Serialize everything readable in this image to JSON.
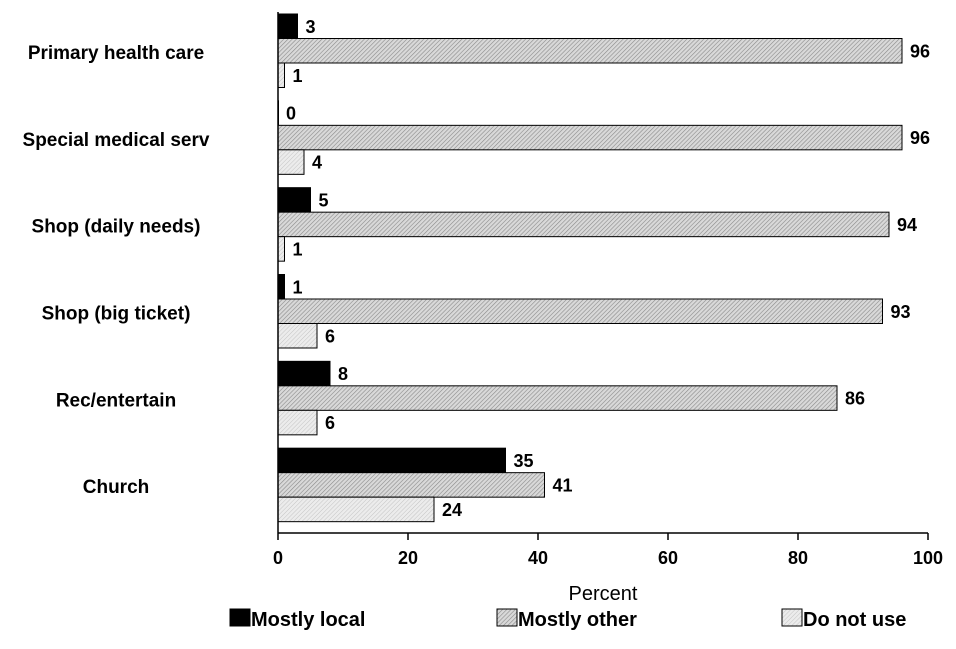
{
  "chart_data": {
    "type": "bar",
    "orientation": "horizontal",
    "categories": [
      "Primary health care",
      "Special medical serv",
      "Shop (daily needs)",
      "Shop (big ticket)",
      "Rec/entertain",
      "Church"
    ],
    "series": [
      {
        "name": "Mostly local",
        "values": [
          3,
          0,
          5,
          1,
          8,
          35
        ],
        "color": "#000000",
        "pattern": "solid"
      },
      {
        "name": "Mostly other",
        "values": [
          96,
          96,
          94,
          93,
          86,
          41
        ],
        "color": "#c8c8c8",
        "pattern": "diagonal-hatch"
      },
      {
        "name": "Do not use",
        "values": [
          1,
          4,
          1,
          6,
          6,
          24
        ],
        "color": "#e6e6e6",
        "pattern": "light-hatch"
      }
    ],
    "xlabel": "Percent",
    "ylabel": "",
    "xlim": [
      0,
      100
    ],
    "xticks": [
      0,
      20,
      40,
      60,
      80,
      100
    ],
    "grid": false,
    "legend_position": "bottom",
    "data_labels": true
  }
}
